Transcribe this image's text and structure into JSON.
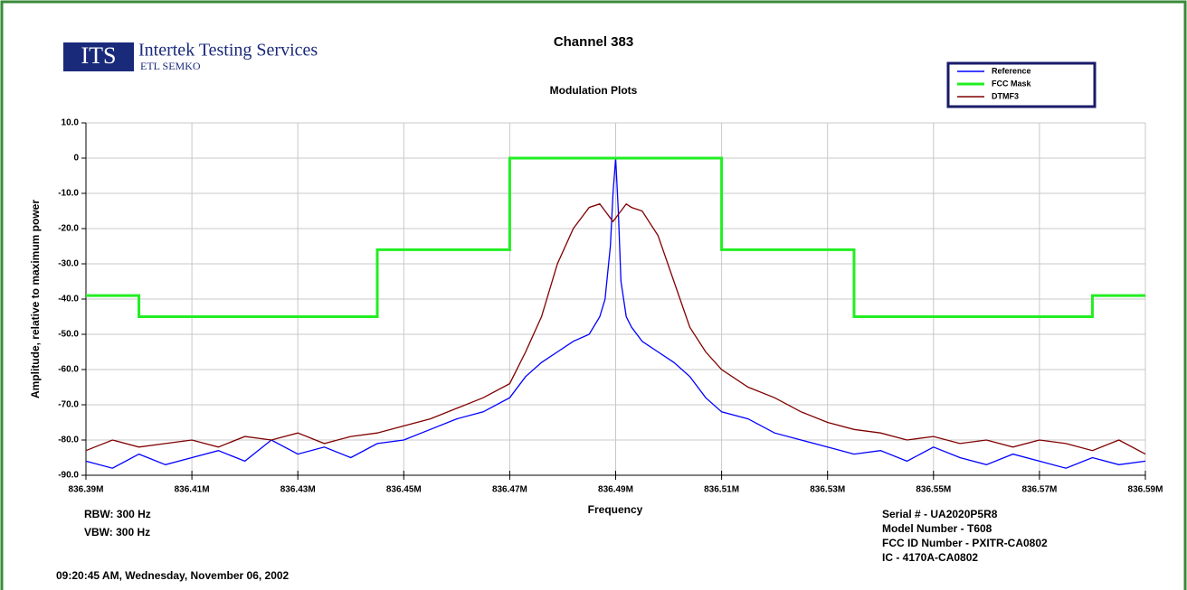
{
  "chart_data": {
    "type": "line",
    "title": "Channel 383",
    "subtitle": "Modulation Plots",
    "logo": {
      "mark": "ITS",
      "name": "Intertek Testing Services",
      "sub": "ETL SEMKO"
    },
    "x_label": "Frequency",
    "y_label": "Amplitude, relative to maximum power",
    "notes_left": [
      "RBW: 300 Hz",
      "VBW: 300 Hz"
    ],
    "notes_right": [
      "Serial # - UA2020P5R8",
      "Model Number - T608",
      "FCC ID Number - PXITR-CA0802",
      "IC - 4170A-CA0802"
    ],
    "timestamp": "09:20:45 AM, Wednesday, November 06, 2002",
    "legend": "top right",
    "grid": true,
    "xlim": [
      836.39,
      836.59
    ],
    "xticks": [
      {
        "value": 836.39,
        "label": "836.39M"
      },
      {
        "value": 836.41,
        "label": "836.41M"
      },
      {
        "value": 836.43,
        "label": "836.43M"
      },
      {
        "value": 836.45,
        "label": "836.45M"
      },
      {
        "value": 836.47,
        "label": "836.47M"
      },
      {
        "value": 836.49,
        "label": "836.49M"
      },
      {
        "value": 836.51,
        "label": "836.51M"
      },
      {
        "value": 836.53,
        "label": "836.53M"
      },
      {
        "value": 836.55,
        "label": "836.55M"
      },
      {
        "value": 836.57,
        "label": "836.57M"
      },
      {
        "value": 836.59,
        "label": "836.59M"
      }
    ],
    "ylim": [
      -90,
      10
    ],
    "yticks": [
      {
        "value": 10,
        "label": "10.0"
      },
      0,
      {
        "value": -10,
        "label": "-10.0"
      },
      {
        "value": -20,
        "label": "-20.0"
      },
      {
        "value": -30,
        "label": "-30.0"
      },
      {
        "value": -40,
        "label": "-40.0"
      },
      {
        "value": -50,
        "label": "-50.0"
      },
      {
        "value": -60,
        "label": "-60.0"
      },
      {
        "value": -70,
        "label": "-70.0"
      },
      {
        "value": -80,
        "label": "-80.0"
      },
      {
        "value": -90,
        "label": "-90.0"
      }
    ],
    "x": [
      836.39,
      836.395,
      836.4,
      836.405,
      836.41,
      836.415,
      836.42,
      836.425,
      836.43,
      836.435,
      836.44,
      836.445,
      836.45,
      836.455,
      836.46,
      836.465,
      836.47,
      836.473,
      836.476,
      836.479,
      836.482,
      836.485,
      836.487,
      836.488,
      836.489,
      836.4895,
      836.49,
      836.4905,
      836.491,
      836.492,
      836.493,
      836.495,
      836.498,
      836.501,
      836.504,
      836.507,
      836.51,
      836.515,
      836.52,
      836.525,
      836.53,
      836.535,
      836.54,
      836.545,
      836.55,
      836.555,
      836.56,
      836.565,
      836.57,
      836.575,
      836.58,
      836.585,
      836.59
    ],
    "series": [
      {
        "name": "Reference",
        "color": "#0000ff",
        "values": [
          -86,
          -88,
          -84,
          -87,
          -85,
          -83,
          -86,
          -80,
          -84,
          -82,
          -85,
          -81,
          -80,
          -77,
          -74,
          -72,
          -68,
          -62,
          -58,
          -55,
          -52,
          -50,
          -45,
          -40,
          -25,
          -10,
          0,
          -15,
          -35,
          -45,
          -48,
          -52,
          -55,
          -58,
          -62,
          -68,
          -72,
          -74,
          -78,
          -80,
          -82,
          -84,
          -83,
          -86,
          -82,
          -85,
          -87,
          -84,
          -86,
          -88,
          -85,
          -87,
          -86
        ]
      },
      {
        "name": "FCC Mask",
        "color": "#22ee22",
        "x": [
          836.39,
          836.4,
          836.4,
          836.445,
          836.445,
          836.47,
          836.47,
          836.51,
          836.51,
          836.535,
          836.535,
          836.58,
          836.58,
          836.59
        ],
        "values": [
          -39,
          -39,
          -45,
          -45,
          -26,
          -26,
          0,
          0,
          -26,
          -26,
          -45,
          -45,
          -39,
          -39
        ]
      },
      {
        "name": "DTMF3",
        "color": "#800000",
        "values": [
          -83,
          -80,
          -82,
          -81,
          -80,
          -82,
          -79,
          -80,
          -78,
          -81,
          -79,
          -78,
          -76,
          -74,
          -71,
          -68,
          -64,
          -55,
          -45,
          -30,
          -20,
          -14,
          -13,
          -15,
          -17,
          -18,
          -17,
          -16,
          -15,
          -13,
          -14,
          -15,
          -22,
          -35,
          -48,
          -55,
          -60,
          -65,
          -68,
          -72,
          -75,
          -77,
          -78,
          -80,
          -79,
          -81,
          -80,
          -82,
          -80,
          -81,
          -83,
          -80,
          -84
        ]
      }
    ]
  }
}
